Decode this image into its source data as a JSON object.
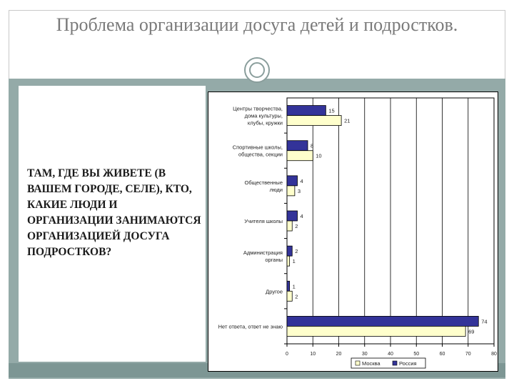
{
  "slide": {
    "title": "Проблема организации досуга детей и подростков.",
    "question": "ТАМ, ГДЕ ВЫ ЖИВЕТЕ (В ВАШЕМ ГОРОДЕ, СЕЛЕ), КТО, КАКИЕ ЛЮДИ И ОРГАНИЗАЦИИ ЗАНИМАЮТСЯ ОРГАНИЗАЦИЕЙ ДОСУГА ПОДРОСТКОВ?"
  },
  "colors": {
    "band": "#94aaa8",
    "series_russia": "#333399",
    "series_moscow": "#ffffcc"
  },
  "chart_data": {
    "type": "bar",
    "orientation": "horizontal",
    "categories": [
      [
        "Центры творчества,",
        "дома культуры,",
        "клубы, кружки"
      ],
      [
        "Спортивные школы,",
        "общества, секции"
      ],
      [
        "Общественные",
        "люди"
      ],
      [
        "Учителя школы"
      ],
      [
        "Администрация",
        "органы"
      ],
      [
        "Другое"
      ],
      [
        "Нет ответа, ответ не знаю"
      ]
    ],
    "series": [
      {
        "name": "Россия",
        "values": [
          15,
          8,
          4,
          4,
          2,
          1,
          74
        ]
      },
      {
        "name": "Москва",
        "values": [
          21,
          10,
          3,
          2,
          1,
          2,
          69
        ]
      }
    ],
    "xlim": [
      0,
      80
    ],
    "xticks": [
      0,
      10,
      20,
      30,
      40,
      50,
      60,
      70,
      80
    ],
    "grid": true,
    "legend_position": "bottom"
  }
}
